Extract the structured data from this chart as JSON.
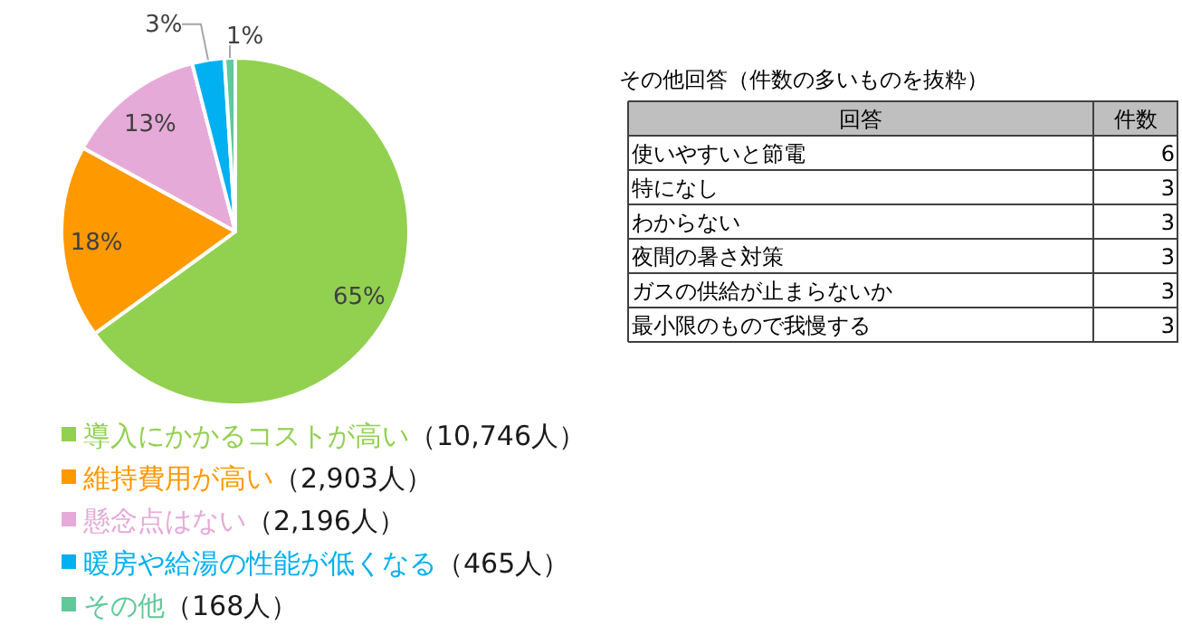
{
  "chart_data": [
    {
      "type": "pie",
      "categories": [
        "導入にかかるコストが高い（10,746人）",
        "維持費用が高い（2,903人）",
        "懸念点はない（2,196人）",
        "暖房や給湯の性能が低くなる（465人）",
        "その他（168人）"
      ],
      "values": [
        65,
        18,
        13,
        3,
        1
      ],
      "colors": [
        "#92d050",
        "#ff9900",
        "#e6aad8",
        "#00b0f0",
        "#5fc999"
      ],
      "value_labels": [
        "65%",
        "18%",
        "13%",
        "3%",
        "1%"
      ],
      "legend": "bottom"
    },
    {
      "type": "other",
      "title": "その他回答（件数の多いものを抜粋）",
      "xlabel": "回答",
      "ylabel": "件数",
      "categories": [
        "使いやすいと節電",
        "特になし",
        "わからない",
        "夜間の暑さ対策",
        "ガスの供給が止まらないか",
        "最小限のもので我慢する"
      ],
      "values": [
        6,
        3,
        3,
        3,
        3,
        3
      ],
      "data_labels": true
    }
  ]
}
